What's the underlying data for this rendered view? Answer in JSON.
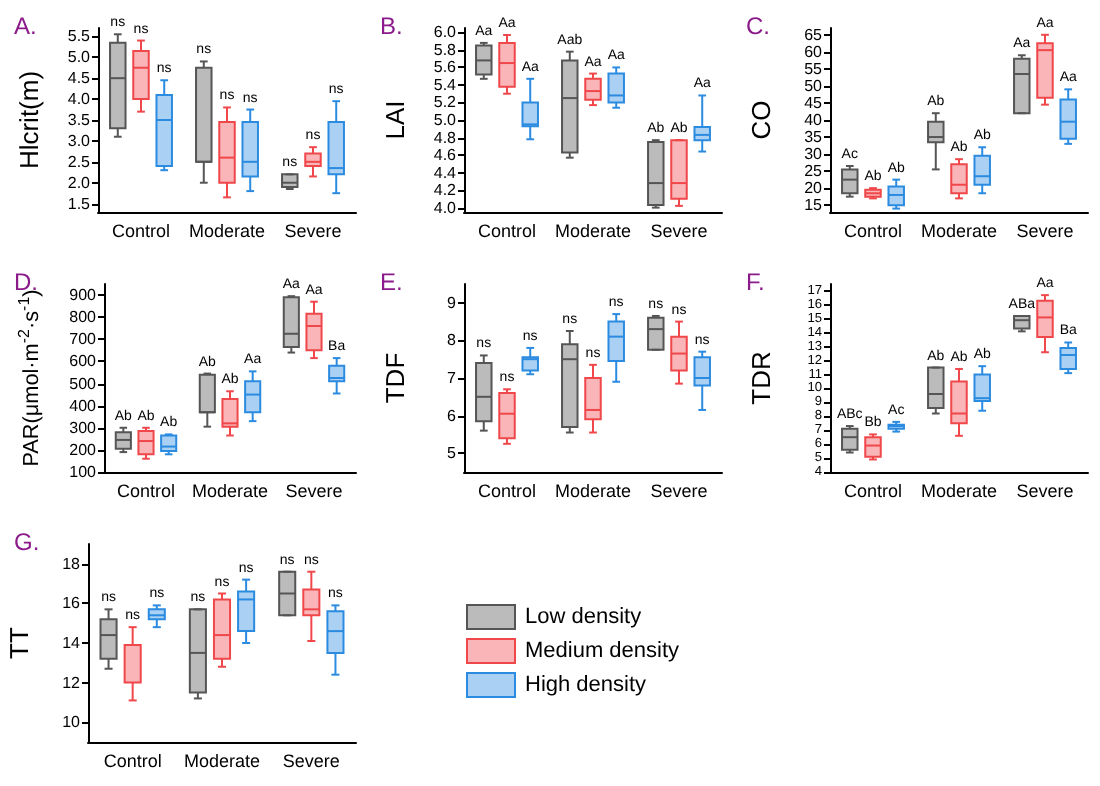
{
  "chart_data": [
    {
      "type": "box",
      "title": "A.",
      "ylabel": "Hlcrit(m)",
      "categories": [
        "Control",
        "Moderate",
        "Severe"
      ],
      "ylim": [
        1.3,
        5.7
      ],
      "yticks": [
        1.5,
        {
          "value": 2,
          "label": "2.0"
        },
        2.5,
        {
          "value": 3,
          "label": "3.0"
        },
        3.5,
        {
          "value": 4,
          "label": "4.0"
        },
        4.5,
        {
          "value": 5,
          "label": "5.0"
        },
        5.5
      ],
      "series": [
        {
          "color": "#555555",
          "boxes": [
            {
              "low": 3.1,
              "q1": 3.3,
              "median": 4.5,
              "q3": 5.35,
              "high": 5.55
            },
            {
              "low": 2.0,
              "q1": 2.5,
              "median": 2.5,
              "q3": 4.75,
              "high": 4.9
            },
            {
              "low": 1.85,
              "q1": 1.9,
              "median": 2.0,
              "q3": 2.2,
              "high": 2.2
            }
          ],
          "value_labels": [
            "ns",
            "ns",
            "ns"
          ]
        },
        {
          "color": "#f0474b",
          "boxes": [
            {
              "low": 3.7,
              "q1": 4.0,
              "median": 4.75,
              "q3": 5.15,
              "high": 5.4
            },
            {
              "low": 1.65,
              "q1": 2.0,
              "median": 2.6,
              "q3": 3.45,
              "high": 3.8
            },
            {
              "low": 2.15,
              "q1": 2.4,
              "median": 2.5,
              "q3": 2.7,
              "high": 2.85
            }
          ],
          "value_labels": [
            "ns",
            "ns",
            "ns"
          ]
        },
        {
          "color": "#2b8be0",
          "boxes": [
            {
              "low": 2.3,
              "q1": 2.4,
              "median": 3.5,
              "q3": 4.1,
              "high": 4.45
            },
            {
              "low": 1.8,
              "q1": 2.15,
              "median": 2.5,
              "q3": 3.45,
              "high": 3.75
            },
            {
              "low": 1.75,
              "q1": 2.2,
              "median": 2.35,
              "q3": 3.45,
              "high": 3.95
            }
          ],
          "value_labels": [
            "ns",
            "ns",
            "ns"
          ]
        }
      ]
    },
    {
      "type": "box",
      "title": "B.",
      "ylabel": "LAI",
      "categories": [
        "Control",
        "Moderate",
        "Severe"
      ],
      "ylim": [
        3.95,
        6.05
      ],
      "yticks": [
        {
          "value": 4,
          "label": "4.0"
        },
        4.2,
        4.4,
        4.6,
        4.8,
        {
          "value": 5,
          "label": "5.0"
        },
        5.2,
        5.4,
        5.6,
        5.8,
        {
          "value": 6,
          "label": "6.0"
        }
      ],
      "series": [
        {
          "color": "#555555",
          "boxes": [
            {
              "low": 5.47,
              "q1": 5.52,
              "median": 5.68,
              "q3": 5.85,
              "high": 5.88
            },
            {
              "low": 4.57,
              "q1": 4.63,
              "median": 5.25,
              "q3": 5.68,
              "high": 5.78
            },
            {
              "low": 4.0,
              "q1": 4.03,
              "median": 4.28,
              "q3": 4.75,
              "high": 4.77
            }
          ],
          "value_labels": [
            "Aa",
            "Aab",
            "Ab"
          ]
        },
        {
          "color": "#f0474b",
          "boxes": [
            {
              "low": 5.3,
              "q1": 5.38,
              "median": 5.65,
              "q3": 5.88,
              "high": 5.97
            },
            {
              "low": 5.17,
              "q1": 5.23,
              "median": 5.33,
              "q3": 5.47,
              "high": 5.53
            },
            {
              "low": 4.02,
              "q1": 4.1,
              "median": 4.28,
              "q3": 4.77,
              "high": 4.77
            }
          ],
          "value_labels": [
            "Aa",
            "Aa",
            "Ab"
          ]
        },
        {
          "color": "#2b8be0",
          "boxes": [
            {
              "low": 4.78,
              "q1": 4.93,
              "median": 4.95,
              "q3": 5.2,
              "high": 5.47
            },
            {
              "low": 5.14,
              "q1": 5.2,
              "median": 5.28,
              "q3": 5.53,
              "high": 5.6
            },
            {
              "low": 4.64,
              "q1": 4.77,
              "median": 4.83,
              "q3": 4.92,
              "high": 5.28
            }
          ],
          "value_labels": [
            "Aa",
            "Aa",
            "Aa"
          ]
        }
      ]
    },
    {
      "type": "box",
      "title": "C.",
      "ylabel": "CO",
      "categories": [
        "Control",
        "Moderate",
        "Severe"
      ],
      "ylim": [
        13,
        67
      ],
      "yticks": [
        15,
        20,
        25,
        30,
        35,
        40,
        45,
        50,
        55,
        60,
        65
      ],
      "series": [
        {
          "color": "#555555",
          "boxes": [
            {
              "low": 17.5,
              "q1": 18.5,
              "median": 22.5,
              "q3": 25.5,
              "high": 26.5
            },
            {
              "low": 25.5,
              "q1": 33.5,
              "median": 35,
              "q3": 39.5,
              "high": 42
            },
            {
              "low": 42,
              "q1": 42,
              "median": 53.5,
              "q3": 58,
              "high": 59
            }
          ],
          "value_labels": [
            "Ac",
            "Ab",
            "Aa"
          ]
        },
        {
          "color": "#f0474b",
          "boxes": [
            {
              "low": 17,
              "q1": 17.5,
              "median": 18.5,
              "q3": 19.5,
              "high": 20
            },
            {
              "low": 17,
              "q1": 18.5,
              "median": 21,
              "q3": 27,
              "high": 28.5
            },
            {
              "low": 44.5,
              "q1": 46.5,
              "median": 60.5,
              "q3": 62.5,
              "high": 65
            }
          ],
          "value_labels": [
            "Ab",
            "Ab",
            "Aa"
          ]
        },
        {
          "color": "#2b8be0",
          "boxes": [
            {
              "low": 14,
              "q1": 15,
              "median": 18,
              "q3": 20.5,
              "high": 22.5
            },
            {
              "low": 18.5,
              "q1": 21,
              "median": 23.5,
              "q3": 29.5,
              "high": 32
            },
            {
              "low": 33,
              "q1": 34.5,
              "median": 39.5,
              "q3": 46,
              "high": 49
            }
          ],
          "value_labels": [
            "Ab",
            "Ab",
            "Aa"
          ]
        }
      ]
    },
    {
      "type": "box",
      "title": "D.",
      "ylabel": "PAR(μmol·m$^{-2}$·s$^{-1}$)",
      "categories": [
        "Control",
        "Moderate",
        "Severe"
      ],
      "ylim": [
        100,
        950
      ],
      "yticks": [
        100,
        200,
        300,
        400,
        500,
        600,
        700,
        800,
        900
      ],
      "series": [
        {
          "color": "#555555",
          "boxes": [
            {
              "low": 190,
              "q1": 205,
              "median": 245,
              "q3": 280,
              "high": 300
            },
            {
              "low": 305,
              "q1": 370,
              "median": 370,
              "q3": 540,
              "high": 545
            },
            {
              "low": 640,
              "q1": 665,
              "median": 725,
              "q3": 890,
              "high": 895
            }
          ],
          "value_labels": [
            "Ab",
            "Ab",
            "Aa"
          ]
        },
        {
          "color": "#f0474b",
          "boxes": [
            {
              "low": 160,
              "q1": 180,
              "median": 240,
              "q3": 285,
              "high": 300
            },
            {
              "low": 265,
              "q1": 305,
              "median": 320,
              "q3": 430,
              "high": 465
            },
            {
              "low": 615,
              "q1": 650,
              "median": 760,
              "q3": 815,
              "high": 870
            }
          ],
          "value_labels": [
            "Ab",
            "Ab",
            "Aa"
          ]
        },
        {
          "color": "#2b8be0",
          "boxes": [
            {
              "low": 180,
              "q1": 195,
              "median": 215,
              "q3": 265,
              "high": 270
            },
            {
              "low": 330,
              "q1": 370,
              "median": 450,
              "q3": 510,
              "high": 555
            },
            {
              "low": 455,
              "q1": 510,
              "median": 525,
              "q3": 580,
              "high": 615
            }
          ],
          "value_labels": [
            "Ab",
            "Aa",
            "Ba"
          ]
        }
      ]
    },
    {
      "type": "box",
      "title": "E.",
      "ylabel": "TDF",
      "categories": [
        "Control",
        "Moderate",
        "Severe"
      ],
      "ylim": [
        4.5,
        9.5
      ],
      "yticks": [
        5,
        6,
        7,
        8,
        9
      ],
      "series": [
        {
          "color": "#555555",
          "boxes": [
            {
              "low": 5.6,
              "q1": 5.85,
              "median": 6.5,
              "q3": 7.4,
              "high": 7.6
            },
            {
              "low": 5.55,
              "q1": 5.7,
              "median": 7.5,
              "q3": 7.9,
              "high": 8.25
            },
            {
              "low": 7.75,
              "q1": 7.75,
              "median": 8.3,
              "q3": 8.6,
              "high": 8.65
            }
          ],
          "value_labels": [
            "ns",
            "ns",
            "ns"
          ]
        },
        {
          "color": "#f0474b",
          "boxes": [
            {
              "low": 5.25,
              "q1": 5.4,
              "median": 6.05,
              "q3": 6.6,
              "high": 6.7
            },
            {
              "low": 5.55,
              "q1": 5.9,
              "median": 6.15,
              "q3": 7.0,
              "high": 7.35
            },
            {
              "low": 6.85,
              "q1": 7.2,
              "median": 7.65,
              "q3": 8.1,
              "high": 8.5
            }
          ],
          "value_labels": [
            "ns",
            "ns",
            "ns"
          ]
        },
        {
          "color": "#2b8be0",
          "boxes": [
            {
              "low": 7.1,
              "q1": 7.2,
              "median": 7.5,
              "q3": 7.55,
              "high": 7.8
            },
            {
              "low": 6.9,
              "q1": 7.45,
              "median": 8.1,
              "q3": 8.5,
              "high": 8.7
            },
            {
              "low": 6.15,
              "q1": 6.8,
              "median": 7.0,
              "q3": 7.55,
              "high": 7.7
            }
          ],
          "value_labels": [
            "ns",
            "ns",
            "ns"
          ]
        }
      ]
    },
    {
      "type": "box",
      "title": "F.",
      "ylabel": "TDR",
      "categories": [
        "Control",
        "Moderate",
        "Severe"
      ],
      "ylim": [
        4,
        17.5
      ],
      "yticks": [
        4,
        5,
        6,
        7,
        8,
        9,
        10,
        11,
        12,
        13,
        14,
        15,
        16,
        17
      ],
      "series": [
        {
          "color": "#555555",
          "boxes": [
            {
              "low": 5.4,
              "q1": 5.6,
              "median": 6.5,
              "q3": 7.1,
              "high": 7.3
            },
            {
              "low": 8.2,
              "q1": 8.6,
              "median": 9.6,
              "q3": 11.5,
              "high": 11.5
            },
            {
              "low": 14.1,
              "q1": 14.3,
              "median": 14.9,
              "q3": 15.2,
              "high": 15.2
            }
          ],
          "value_labels": [
            "ABc",
            "Ab",
            "ABa"
          ]
        },
        {
          "color": "#f0474b",
          "boxes": [
            {
              "low": 4.9,
              "q1": 5.1,
              "median": 5.9,
              "q3": 6.5,
              "high": 6.7
            },
            {
              "low": 6.6,
              "q1": 7.5,
              "median": 8.2,
              "q3": 10.5,
              "high": 11.4
            },
            {
              "low": 12.6,
              "q1": 13.7,
              "median": 15.1,
              "q3": 16.3,
              "high": 16.7
            }
          ],
          "value_labels": [
            "Bb",
            "Ab",
            "Aa"
          ]
        },
        {
          "color": "#2b8be0",
          "boxes": [
            {
              "low": 6.9,
              "q1": 7.1,
              "median": 7.3,
              "q3": 7.4,
              "high": 7.6
            },
            {
              "low": 8.4,
              "q1": 9.1,
              "median": 9.3,
              "q3": 11.0,
              "high": 11.6
            },
            {
              "low": 11.1,
              "q1": 11.4,
              "median": 12.4,
              "q3": 12.9,
              "high": 13.3
            }
          ],
          "value_labels": [
            "Ac",
            "Ab",
            "Ba"
          ]
        }
      ]
    },
    {
      "type": "box",
      "title": "G.",
      "ylabel": "TT",
      "categories": [
        "Control",
        "Moderate",
        "Severe"
      ],
      "ylim": [
        9,
        19
      ],
      "yticks": [
        10,
        12,
        14,
        16,
        18
      ],
      "legend": "right",
      "series": [
        {
          "name": "Low density",
          "color": "#555555",
          "boxes": [
            {
              "low": 12.7,
              "q1": 13.2,
              "median": 14.4,
              "q3": 15.2,
              "high": 15.7
            },
            {
              "low": 11.2,
              "q1": 11.5,
              "median": 13.5,
              "q3": 15.7,
              "high": 15.7
            },
            {
              "low": 15.4,
              "q1": 15.4,
              "median": 16.5,
              "q3": 17.6,
              "high": 17.6
            }
          ],
          "value_labels": [
            "ns",
            "ns",
            "ns"
          ]
        },
        {
          "name": "Medium density",
          "color": "#f0474b",
          "boxes": [
            {
              "low": 11.1,
              "q1": 12.0,
              "median": 13.9,
              "q3": 13.9,
              "high": 14.8
            },
            {
              "low": 12.8,
              "q1": 13.2,
              "median": 14.4,
              "q3": 16.2,
              "high": 16.5
            },
            {
              "low": 14.1,
              "q1": 15.4,
              "median": 15.7,
              "q3": 16.7,
              "high": 17.6
            }
          ],
          "value_labels": [
            "ns",
            "ns",
            "ns"
          ]
        },
        {
          "name": "High density",
          "color": "#2b8be0",
          "boxes": [
            {
              "low": 14.8,
              "q1": 15.2,
              "median": 15.4,
              "q3": 15.7,
              "high": 15.9
            },
            {
              "low": 14.0,
              "q1": 14.6,
              "median": 16.2,
              "q3": 16.6,
              "high": 17.2
            },
            {
              "low": 12.4,
              "q1": 13.5,
              "median": 14.6,
              "q3": 15.6,
              "high": 15.9
            }
          ],
          "value_labels": [
            "ns",
            "ns",
            "ns"
          ]
        }
      ]
    }
  ]
}
